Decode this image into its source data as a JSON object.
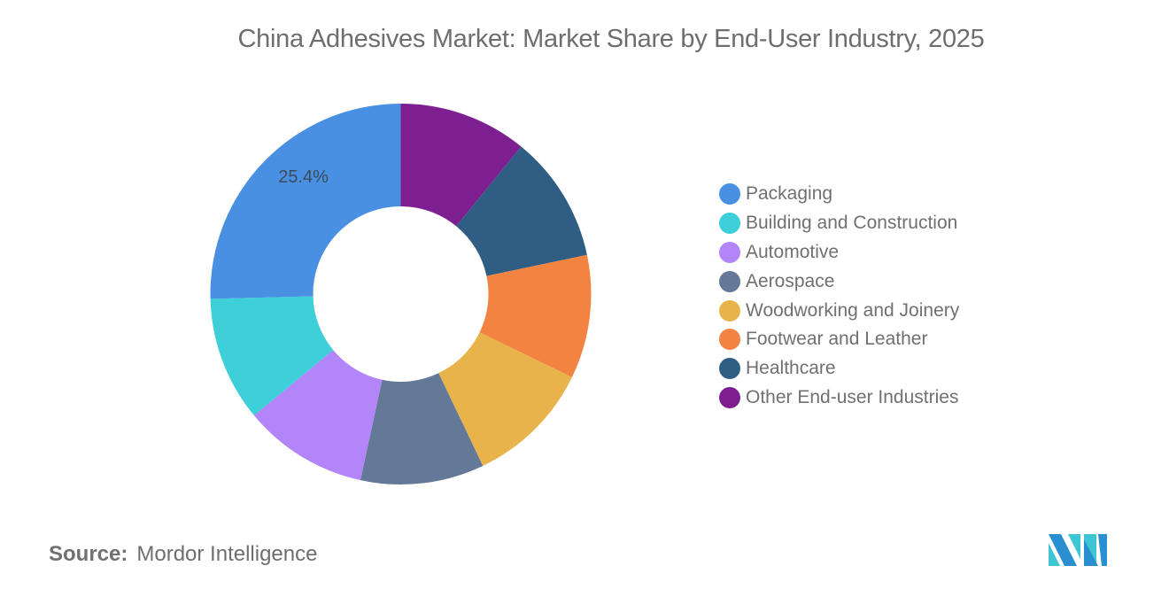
{
  "title": "China Adhesives Market: Market Share by End-User Industry, 2025",
  "source": {
    "label": "Source:",
    "value": "Mordor Intelligence"
  },
  "logo": {
    "icon": "mordor-intelligence-logo-icon"
  },
  "legend": [
    {
      "label": "Packaging",
      "color": "#4a90e2"
    },
    {
      "label": "Building and Construction",
      "color": "#3ecfd8"
    },
    {
      "label": "Automotive",
      "color": "#b286f8"
    },
    {
      "label": "Aerospace",
      "color": "#647898"
    },
    {
      "label": "Woodworking and Joinery",
      "color": "#e8b34a"
    },
    {
      "label": "Footwear and Leather",
      "color": "#f28341"
    },
    {
      "label": "Healthcare",
      "color": "#2f5d84"
    },
    {
      "label": "Other End-user Industries",
      "color": "#7d1f91"
    }
  ],
  "chart_data": {
    "type": "pie",
    "subtype": "donut",
    "title": "China Adhesives Market: Market Share by End-User Industry, 2025",
    "categories": [
      "Packaging",
      "Building and Construction",
      "Automotive",
      "Aerospace",
      "Woodworking and Joinery",
      "Footwear and Leather",
      "Healthcare",
      "Other End-user Industries"
    ],
    "values": [
      25.4,
      10.6,
      10.6,
      10.5,
      10.7,
      10.5,
      10.8,
      10.9
    ],
    "labels_shown": {
      "Packaging": "25.4%"
    },
    "colors": [
      "#4a90e2",
      "#3ecfd8",
      "#b286f8",
      "#647898",
      "#e8b34a",
      "#f28341",
      "#2f5d84",
      "#7d1f91"
    ],
    "legend_position": "right",
    "unit": "%"
  }
}
